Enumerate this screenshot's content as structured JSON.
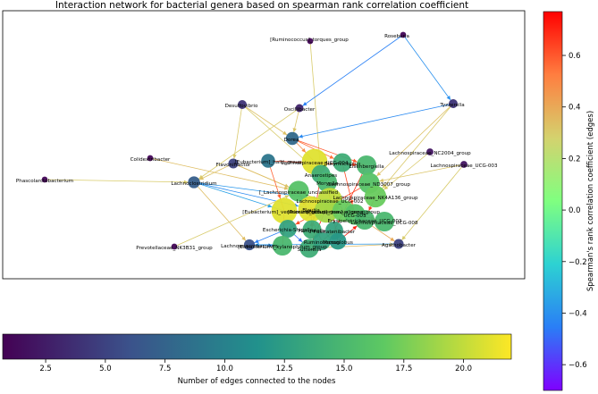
{
  "title": "Interaction network for bacterial genera based on spearman rank correlation coefficient",
  "edge_colorbar": {
    "label": "Spearman's rank correlation coefficient (edges)",
    "ticks": [
      "0.6",
      "0.4",
      "0.2",
      "0.0",
      "−0.2",
      "−0.4",
      "−0.6"
    ],
    "tick_values": [
      0.6,
      0.4,
      0.2,
      0.0,
      -0.2,
      -0.4,
      -0.6
    ],
    "range": [
      -0.7,
      0.77
    ],
    "colormap": "rainbow"
  },
  "node_colorbar": {
    "label": "Number of edges connected to the nodes",
    "ticks": [
      "2.5",
      "5.0",
      "7.5",
      "10.0",
      "12.5",
      "15.0",
      "17.5",
      "20.0"
    ],
    "tick_values": [
      2.5,
      5.0,
      7.5,
      10.0,
      12.5,
      15.0,
      17.5,
      20.0
    ],
    "range": [
      0.7,
      22
    ],
    "colormap": "viridis"
  },
  "nodes": [
    {
      "id": "rumino",
      "label": "[Ruminococcus]_torques_group",
      "degree": 1
    },
    {
      "id": "roseburia",
      "label": "Roseburia",
      "degree": 1
    },
    {
      "id": "desulfo",
      "label": "Desulfovibrio",
      "degree": 4
    },
    {
      "id": "oscill",
      "label": "Oscillibacter",
      "degree": 3
    },
    {
      "id": "tyzz",
      "label": "Tyzzerella",
      "degree": 4
    },
    {
      "id": "dorea",
      "label": "Dorea",
      "degree": 8
    },
    {
      "id": "lachnc",
      "label": "Lachnospiraceae_NC2004_group",
      "degree": 2
    },
    {
      "id": "colide",
      "label": "Colidextribacter",
      "degree": 1
    },
    {
      "id": "flavo",
      "label": "Flavonifractor",
      "degree": 5
    },
    {
      "id": "eubhal",
      "label": "[Eubacterium]_hallii_group",
      "degree": 9
    },
    {
      "id": "lucg4",
      "label": "Lachnospiraceae_UCG-004",
      "degree": 21
    },
    {
      "id": "butyr",
      "label": "Butyricicoccus",
      "degree": 14
    },
    {
      "id": "eisen",
      "label": "Eisenbergiella",
      "degree": 15
    },
    {
      "id": "lucg3",
      "label": "Lachnospiraceae_UCG-003",
      "degree": 2
    },
    {
      "id": "phasco",
      "label": "Phascolarctobacterium",
      "degree": 1
    },
    {
      "id": "lachnoclost",
      "label": "Lachnoclostridium",
      "degree": 7
    },
    {
      "id": "anaero",
      "label": "Anaerostipes",
      "degree": 14
    },
    {
      "id": "moryella",
      "label": "Moryella",
      "degree": 15
    },
    {
      "id": "lnd3007",
      "label": "Lachnospiraceae_ND3007_group",
      "degree": 16
    },
    {
      "id": "flachno",
      "label": "[_Lachnospiraceae_unclassified",
      "degree": 16
    },
    {
      "id": "nk4a",
      "label": "Lachnospiraceae_NK4A136_group",
      "degree": 17
    },
    {
      "id": "ucg2",
      "label": "Lachnospiraceae_UCG-002",
      "degree": 20
    },
    {
      "id": "blautia",
      "label": "Blautia",
      "degree": 21
    },
    {
      "id": "eubvent",
      "label": "[Eubacterium]_ventriosum_group",
      "degree": 21
    },
    {
      "id": "rumgn",
      "label": "[Ruminococcus]_gnavus_group",
      "degree": 19
    },
    {
      "id": "eligens",
      "label": "[Eubacterium]_eligens_group",
      "degree": 17
    },
    {
      "id": "ucg3",
      "label": "UCG-003",
      "degree": 16
    },
    {
      "id": "erysip",
      "label": "Erysipelotrichaceae_UCG-003",
      "degree": 15
    },
    {
      "id": "lucg8",
      "label": "Lachnospiraceae_UCG-008",
      "degree": 15
    },
    {
      "id": "escher",
      "label": "Escherichia-Shigella",
      "degree": 13
    },
    {
      "id": "hungate",
      "label": "Hungatella",
      "degree": 14
    },
    {
      "id": "fusico",
      "label": "Fusicatenibacter",
      "degree": 13
    },
    {
      "id": "agatho",
      "label": "Agathobacter",
      "degree": 5
    },
    {
      "id": "prevot",
      "label": "Prevotellaceae_NK3B31_group",
      "degree": 1
    },
    {
      "id": "lachnoanaero",
      "label": "Lachnoanaerobaculum",
      "degree": 6
    },
    {
      "id": "eubxyl",
      "label": "[Eubacterium]_xylanophilum_group",
      "degree": 15
    },
    {
      "id": "sutter",
      "label": "Sutterella",
      "degree": 14
    },
    {
      "id": "ruminoc",
      "label": "Ruminococcus",
      "degree": 13
    },
    {
      "id": "monog",
      "label": "Monoglobus",
      "degree": 12
    }
  ],
  "edges": [
    {
      "from": "rumino",
      "to": "anaero",
      "weight": 0.3
    },
    {
      "from": "desulfo",
      "to": "dorea",
      "weight": 0.33
    },
    {
      "from": "desulfo",
      "to": "flavo",
      "weight": 0.31
    },
    {
      "from": "desulfo",
      "to": "anaero",
      "weight": 0.3
    },
    {
      "from": "roseburia",
      "to": "oscill",
      "weight": -0.45
    },
    {
      "from": "roseburia",
      "to": "tyzz",
      "weight": -0.4
    },
    {
      "from": "oscill",
      "to": "lachnoclost",
      "weight": 0.3
    },
    {
      "from": "oscill",
      "to": "dorea",
      "weight": 0.32
    },
    {
      "from": "tyzz",
      "to": "dorea",
      "weight": -0.42
    },
    {
      "from": "tyzz",
      "to": "nk4a",
      "weight": 0.31
    },
    {
      "from": "tyzz",
      "to": "lnd3007",
      "weight": 0.33
    },
    {
      "from": "colide",
      "to": "flachno",
      "weight": 0.34
    },
    {
      "from": "phasco",
      "to": "lachnoclost",
      "weight": 0.3
    },
    {
      "from": "flavo",
      "to": "lachnoclost",
      "weight": 0.33
    },
    {
      "from": "flavo",
      "to": "flachno",
      "weight": 0.32
    },
    {
      "from": "flavo",
      "to": "erysip",
      "weight": 0.34
    },
    {
      "from": "lachnoclost",
      "to": "ucg2",
      "weight": -0.38
    },
    {
      "from": "lachnoclost",
      "to": "eubvent",
      "weight": -0.35
    },
    {
      "from": "lachnoclost",
      "to": "lachnoanaero",
      "weight": 0.34
    },
    {
      "from": "lachnoclost",
      "to": "blautia",
      "weight": -0.42
    },
    {
      "from": "prevot",
      "to": "flachno",
      "weight": 0.3
    },
    {
      "from": "dorea",
      "to": "butyr",
      "weight": 0.55
    },
    {
      "from": "dorea",
      "to": "lucg4",
      "weight": 0.48
    },
    {
      "from": "dorea",
      "to": "eisen",
      "weight": 0.6
    },
    {
      "from": "lachnc",
      "to": "nk4a",
      "weight": 0.31
    },
    {
      "from": "lucg3",
      "to": "lnd3007",
      "weight": 0.32
    },
    {
      "from": "lucg3",
      "to": "agatho",
      "weight": 0.3
    },
    {
      "from": "eubhal",
      "to": "eubvent",
      "weight": 0.58
    },
    {
      "from": "butyr",
      "to": "ucg3",
      "weight": 0.62
    },
    {
      "from": "eisen",
      "to": "fusico",
      "weight": 0.68
    },
    {
      "from": "anaero",
      "to": "hungate",
      "weight": 0.65
    },
    {
      "from": "moryella",
      "to": "monog",
      "weight": 0.7
    },
    {
      "from": "lnd3007",
      "to": "escher",
      "weight": 0.62
    },
    {
      "from": "nk4a",
      "to": "erysip",
      "weight": 0.66
    },
    {
      "from": "ucg2",
      "to": "sutter",
      "weight": 0.72
    },
    {
      "from": "blautia",
      "to": "rumgn",
      "weight": 0.75
    },
    {
      "from": "eubvent",
      "to": "eubxyl",
      "weight": 0.7
    },
    {
      "from": "eligens",
      "to": "lucg8",
      "weight": 0.68
    },
    {
      "from": "ucg3",
      "to": "agatho",
      "weight": 0.4
    },
    {
      "from": "escher",
      "to": "lachnoanaero",
      "weight": -0.45
    },
    {
      "from": "escher",
      "to": "sutter",
      "weight": -0.48
    },
    {
      "from": "lachnoanaero",
      "to": "eubxyl",
      "weight": -0.4
    },
    {
      "from": "ruminoc",
      "to": "flachno",
      "weight": 0.66
    },
    {
      "from": "monog",
      "to": "erysip",
      "weight": 0.71
    },
    {
      "from": "eubhal",
      "to": "eisen",
      "weight": 0.64
    },
    {
      "from": "fusico",
      "to": "ruminoc",
      "weight": 0.7
    },
    {
      "from": "hungate",
      "to": "blautia",
      "weight": 0.73
    },
    {
      "from": "lucg4",
      "to": "eligens",
      "weight": 0.69
    },
    {
      "from": "sutter",
      "to": "agatho",
      "weight": 0.35
    },
    {
      "from": "agatho",
      "to": "lachnoanaero",
      "weight": -0.38
    }
  ]
}
